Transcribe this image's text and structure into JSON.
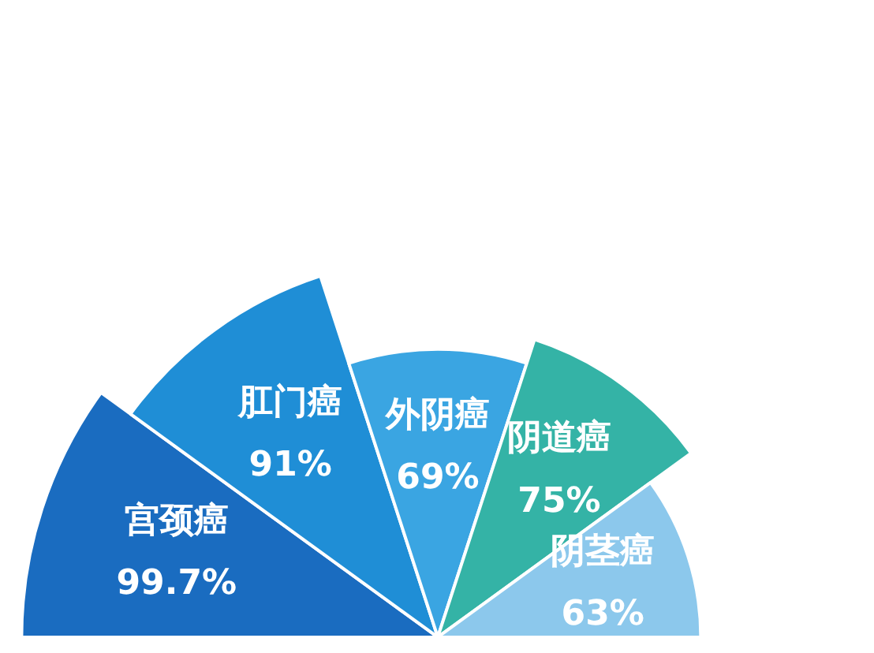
{
  "chart_data": {
    "type": "other",
    "categories": [
      "宫颈癌",
      "肛门癌",
      "外阴癌",
      "阴道癌",
      "阴茎癌"
    ],
    "values": [
      99.7,
      91,
      69,
      75,
      63
    ],
    "value_labels": [
      "99.7%",
      "91%",
      "69%",
      "75%",
      "63%"
    ],
    "colors": [
      "#1a6cc0",
      "#1f8ed6",
      "#3aa5e2",
      "#34b3a6",
      "#8cc8ec"
    ]
  }
}
